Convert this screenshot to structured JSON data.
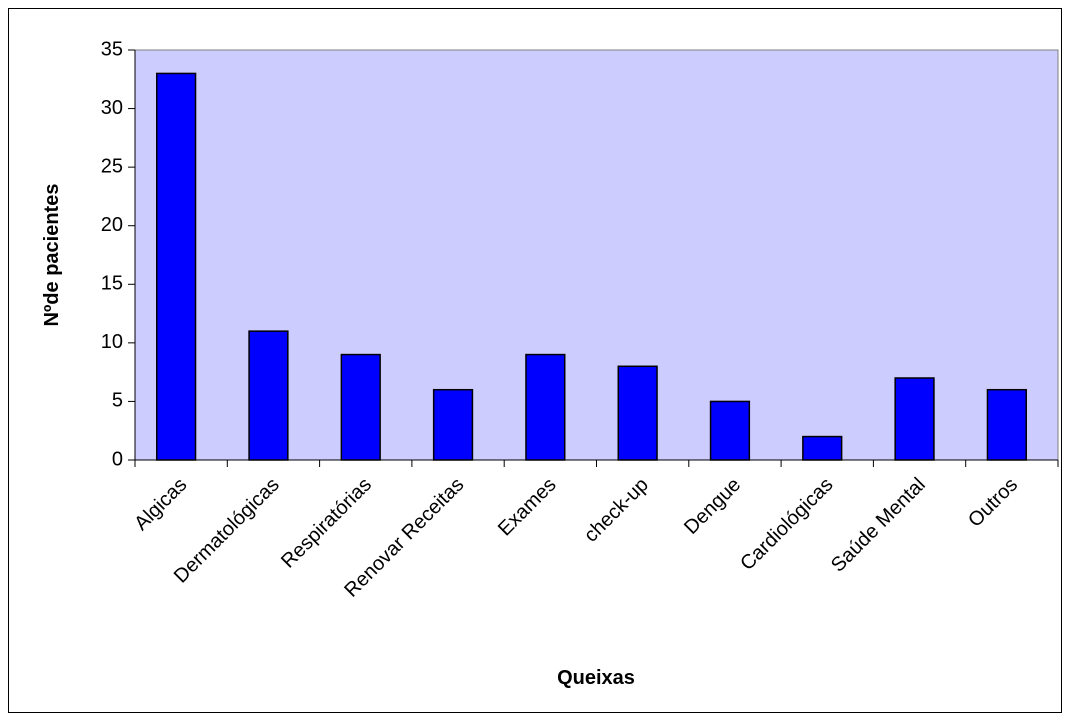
{
  "chart_data": {
    "type": "bar",
    "x_label": "Queixas",
    "y_label": "Nºde pacientes",
    "categories": [
      "Algicas",
      "Dermatológicas",
      "Respiratórias",
      "Renovar Receitas",
      "Exames",
      "check-up",
      "Dengue",
      "Cardiológicas",
      "Saúde Mental",
      "Outros"
    ],
    "values": [
      33,
      11,
      9,
      6,
      9,
      8,
      5,
      2,
      7,
      6
    ],
    "color": "#0000ff",
    "plot_background": "#ccccff",
    "ylim": [
      0,
      35
    ],
    "yticks": [
      0,
      5,
      10,
      15,
      20,
      25,
      30,
      35
    ],
    "grid": false
  }
}
